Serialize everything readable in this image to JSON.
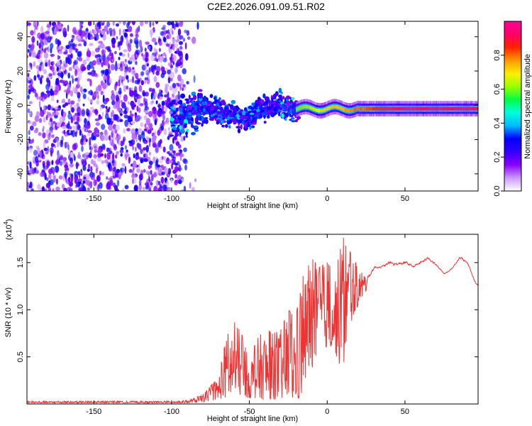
{
  "figure": {
    "title": "C2E2.2026.091.09.51.R02"
  },
  "chart_data": [
    {
      "type": "heatmap",
      "title": "C2E2.2026.091.09.51.R02",
      "xlabel": "Height of straight line (km)",
      "ylabel": "Frequency (Hz)",
      "xlim": [
        -193,
        97
      ],
      "ylim": [
        -50,
        49
      ],
      "x_ticks": [
        -150,
        -100,
        -50,
        0,
        50
      ],
      "y_ticks": [
        -40,
        -20,
        0,
        20,
        40
      ],
      "colorbar": {
        "label": "Normalized spectral amplitude",
        "range": [
          0,
          1
        ],
        "ticks": [
          "0.0",
          "0.2",
          "0.4",
          "0.6",
          "0.8"
        ],
        "colors": [
          "#ffffff",
          "#cc99ff",
          "#8800ff",
          "#3300ff",
          "#0000ff",
          "#00bbff",
          "#00ffdd",
          "#00ff44",
          "#99ff00",
          "#ffee00",
          "#ff9900",
          "#ff2200",
          "#ff0066",
          "#ff0099"
        ]
      },
      "description_regions": [
        {
          "x_range": [
            -193,
            -100
          ],
          "freq_range": [
            -50,
            49
          ],
          "amplitude": "low (0.05-0.3), scattered"
        },
        {
          "x_range": [
            -100,
            -20
          ],
          "freq_range": [
            -15,
            10
          ],
          "amplitude": "medium (0.2-0.5)"
        },
        {
          "x_range": [
            -20,
            97
          ],
          "freq_range": [
            -4,
            1
          ],
          "amplitude": "high (0.5-1.0), narrow band near -2 Hz"
        }
      ]
    },
    {
      "type": "line",
      "xlabel": "Height of straight line (km)",
      "ylabel": "SNR (10 * v/v)",
      "multiplier_label": "(x10",
      "multiplier_exp": "4",
      "xlim": [
        -193,
        97
      ],
      "ylim": [
        0,
        1.8
      ],
      "x_ticks": [
        -150,
        -100,
        -50,
        0,
        50
      ],
      "y_ticks": [
        "0.5",
        "1.0",
        "1.5"
      ],
      "y_tick_values": [
        0.5,
        1.0,
        1.5
      ],
      "series": [
        {
          "name": "SNR",
          "color": "#ee3333",
          "envelope_x": [
            -193,
            -100,
            -90,
            -80,
            -70,
            -65,
            -60,
            -55,
            -50,
            -45,
            -40,
            -35,
            -30,
            -25,
            -20,
            -17,
            -15,
            -10,
            -5,
            0,
            5,
            10,
            12,
            15,
            20,
            25,
            30,
            35,
            40,
            45,
            50,
            55,
            60,
            65,
            70,
            75,
            80,
            85,
            90,
            95,
            97
          ],
          "envelope_low": [
            0.01,
            0.01,
            0.01,
            0.02,
            0.05,
            0.06,
            0.08,
            0.09,
            0.06,
            0.06,
            0.04,
            0.05,
            0.04,
            0.04,
            0.03,
            0.03,
            0.2,
            0.35,
            0.55,
            0.6,
            0.55,
            0.3,
            0.6,
            0.85,
            1.05,
            1.2,
            1.38,
            1.42,
            1.42,
            1.42,
            1.43,
            1.42,
            1.43,
            1.48,
            1.42,
            1.35,
            1.42,
            1.5,
            1.45,
            1.25,
            1.22
          ],
          "envelope_high": [
            0.03,
            0.03,
            0.04,
            0.1,
            0.28,
            0.7,
            0.88,
            0.75,
            0.45,
            0.7,
            0.8,
            0.75,
            0.78,
            1.0,
            0.9,
            1.38,
            1.35,
            1.55,
            1.45,
            1.5,
            1.4,
            1.75,
            1.8,
            1.6,
            1.45,
            1.4,
            1.5,
            1.48,
            1.55,
            1.52,
            1.55,
            1.48,
            1.55,
            1.6,
            1.5,
            1.4,
            1.45,
            1.6,
            1.52,
            1.3,
            1.28
          ]
        }
      ]
    }
  ]
}
